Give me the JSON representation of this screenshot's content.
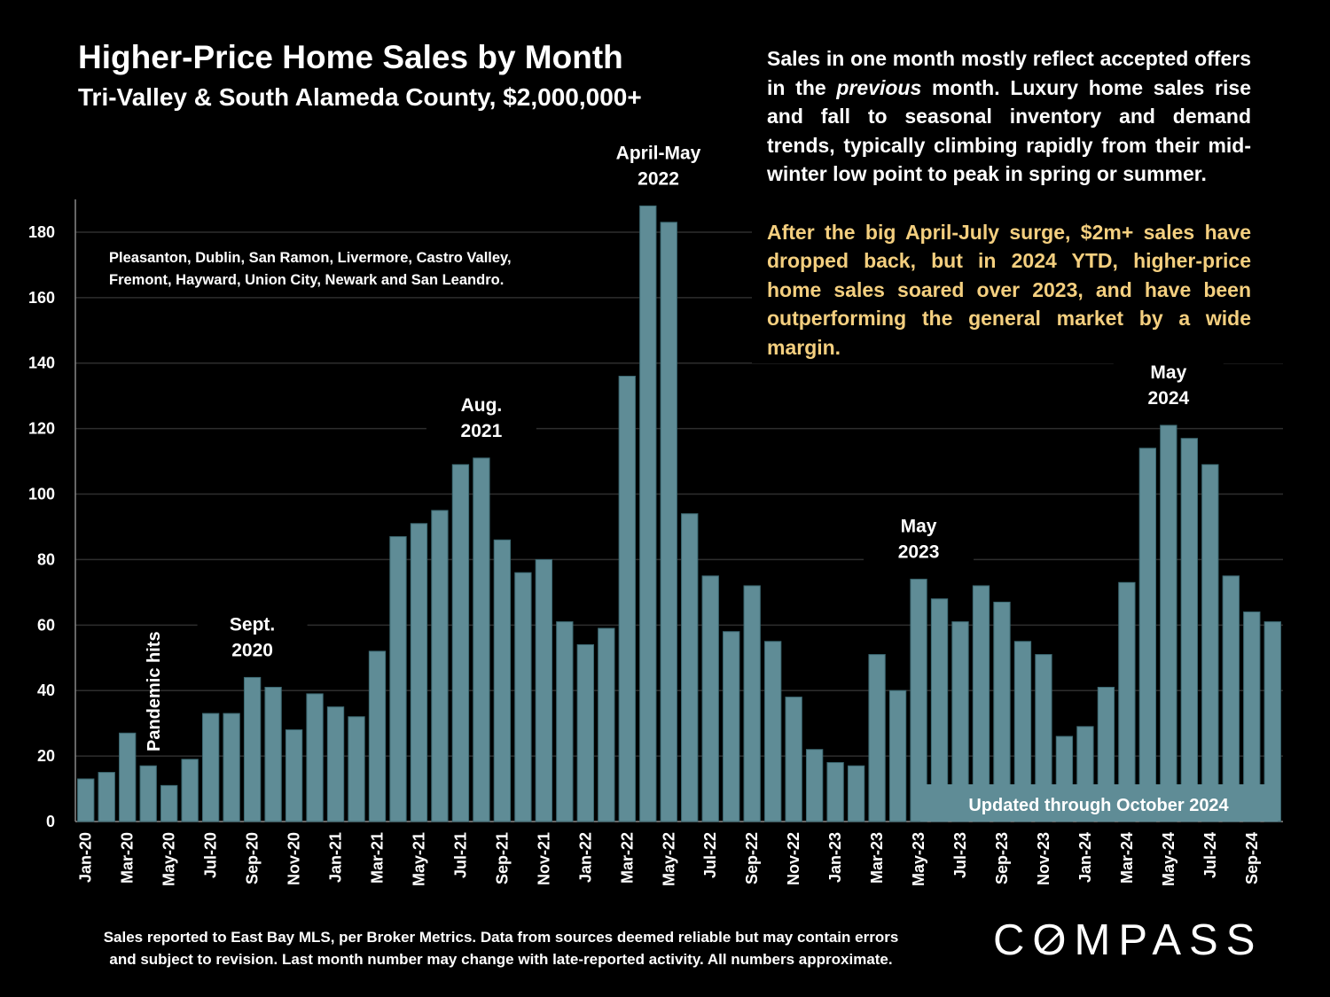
{
  "header": {
    "title": "Higher-Price Home Sales by Month",
    "subtitle": "Tri-Valley & South Alameda County, $2,000,000+"
  },
  "commentary": {
    "para1_a": "Sales in one month mostly reflect accepted offers in the ",
    "para1_em": "previous",
    "para1_b": " month. Luxury home sales rise and fall to seasonal inventory and demand trends, typically climbing rapidly from their mid-winter low point to peak in spring or summer.",
    "para2": "After the big April-July surge, $2m+ sales have dropped back, but in 2024 YTD, higher-price home sales soared over 2023, and have been outperforming the general market by a wide margin."
  },
  "footnote": {
    "line1": "Sales reported to East Bay MLS, per Broker Metrics. Data from sources deemed reliable but may contain errors",
    "line2": "and subject to revision. Last month number may change with late-reported activity. All numbers approximate."
  },
  "logo": {
    "text": "COMPASS"
  },
  "colors": {
    "bar": "#5f8c96",
    "grid": "#2e2e2e",
    "highlight": "#f4cf7f",
    "updated_box": "#5f8c96"
  },
  "chart_data": {
    "type": "bar",
    "x": [
      "Jan-20",
      "Feb-20",
      "Mar-20",
      "Apr-20",
      "May-20",
      "Jun-20",
      "Jul-20",
      "Aug-20",
      "Sep-20",
      "Oct-20",
      "Nov-20",
      "Dec-20",
      "Jan-21",
      "Feb-21",
      "Mar-21",
      "Apr-21",
      "May-21",
      "Jun-21",
      "Jul-21",
      "Aug-21",
      "Sep-21",
      "Oct-21",
      "Nov-21",
      "Dec-21",
      "Jan-22",
      "Feb-22",
      "Mar-22",
      "Apr-22",
      "May-22",
      "Jun-22",
      "Jul-22",
      "Aug-22",
      "Sep-22",
      "Oct-22",
      "Nov-22",
      "Dec-22",
      "Jan-23",
      "Feb-23",
      "Mar-23",
      "Apr-23",
      "May-23",
      "Jun-23",
      "Jul-23",
      "Aug-23",
      "Sep-23",
      "Oct-23",
      "Nov-23",
      "Dec-23",
      "Jan-24",
      "Feb-24",
      "Mar-24",
      "Apr-24",
      "May-24",
      "Jun-24",
      "Jul-24",
      "Aug-24",
      "Sep-24",
      "Oct-24"
    ],
    "values": [
      13,
      15,
      27,
      17,
      11,
      19,
      33,
      33,
      44,
      41,
      28,
      39,
      35,
      32,
      52,
      87,
      91,
      95,
      109,
      111,
      86,
      76,
      80,
      61,
      54,
      59,
      136,
      188,
      183,
      94,
      75,
      58,
      72,
      55,
      38,
      22,
      18,
      17,
      51,
      40,
      74,
      68,
      61,
      72,
      67,
      55,
      51,
      26,
      29,
      41,
      73,
      114,
      121,
      117,
      109,
      75,
      64,
      61
    ],
    "tick_labels": [
      "Jan-20",
      "Mar-20",
      "May-20",
      "Jul-20",
      "Sep-20",
      "Nov-20",
      "Jan-21",
      "Mar-21",
      "May-21",
      "Jul-21",
      "Sep-21",
      "Nov-21",
      "Jan-22",
      "Mar-22",
      "May-22",
      "Jul-22",
      "Sep-22",
      "Nov-22",
      "Jan-23",
      "Mar-23",
      "May-23",
      "Jul-23",
      "Sep-23",
      "Nov-23",
      "Jan-24",
      "Mar-24",
      "May-24",
      "Jul-24",
      "Sep-24"
    ],
    "ylim": [
      0,
      190
    ],
    "yticks": [
      0,
      20,
      40,
      60,
      80,
      100,
      120,
      140,
      160,
      180
    ],
    "grid": true,
    "region_note": [
      "Pleasanton, Dublin, San Ramon, Livermore, Castro Valley,",
      "Fremont, Hayward, Union City, Newark and San Leandro."
    ],
    "annotations": [
      {
        "month": "Apr-20",
        "text": "Pandemic hits",
        "vertical": true
      },
      {
        "month": "Sep-20",
        "lines": [
          "Sept.",
          "2020"
        ]
      },
      {
        "month": "Aug-21",
        "lines": [
          "Aug.",
          "2021"
        ]
      },
      {
        "month": "Apr-22",
        "lines": [
          "April-May",
          "2022"
        ],
        "span_to": "May-22"
      },
      {
        "month": "May-23",
        "lines": [
          "May",
          "2023"
        ]
      },
      {
        "month": "May-24",
        "lines": [
          "May",
          "2024"
        ]
      }
    ],
    "updated_note": "Updated through October 2024"
  }
}
